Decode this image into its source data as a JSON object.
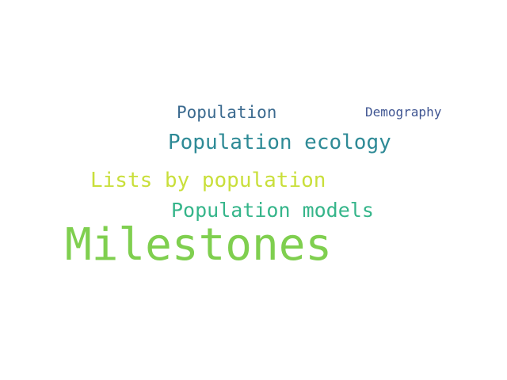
{
  "word_cloud": {
    "background": "#ffffff",
    "words": [
      {
        "id": "population",
        "text": "Population",
        "color": "#3b6a8f"
      },
      {
        "id": "demography",
        "text": "Demography",
        "color": "#3f5592"
      },
      {
        "id": "population-ecology",
        "text": "Population ecology",
        "color": "#2e8a96"
      },
      {
        "id": "lists-by-population",
        "text": "Lists by population",
        "color": "#c9df3b"
      },
      {
        "id": "population-models",
        "text": "Population models",
        "color": "#35b58a"
      },
      {
        "id": "milestones",
        "text": "Milestones",
        "color": "#7fcf4f"
      }
    ]
  }
}
